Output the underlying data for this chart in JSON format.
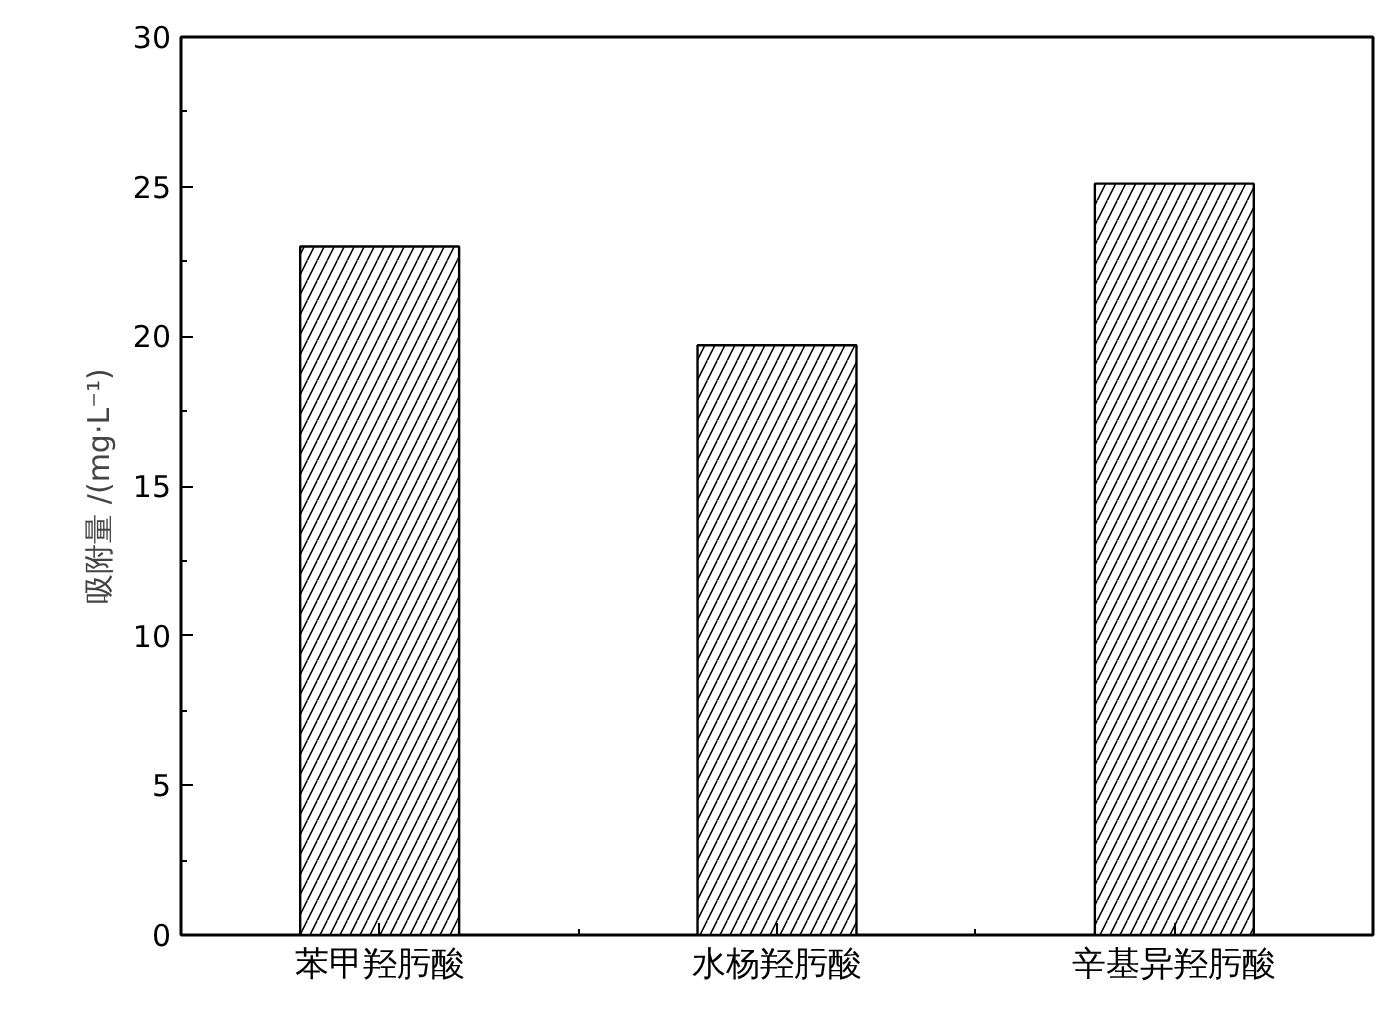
{
  "chart_data": {
    "type": "bar",
    "ylabel": "吸附量 /(mg·L⁻¹)",
    "categories": [
      "苯甲羟肟酸",
      "水杨羟肟酸",
      "辛基异羟肟酸"
    ],
    "values": [
      23.0,
      19.7,
      25.1
    ],
    "color": "#ffffff",
    "ylim": [
      0,
      30
    ],
    "yticks": [
      0,
      5,
      10,
      15,
      20,
      25,
      30
    ],
    "grid": false
  }
}
